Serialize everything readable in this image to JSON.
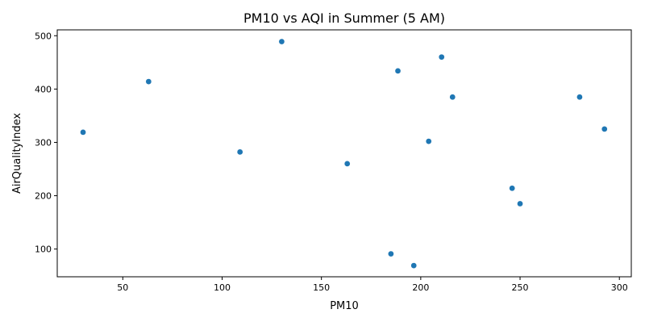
{
  "chart_data": {
    "type": "scatter",
    "title": "PM10 vs AQI in Summer (5 AM)",
    "xlabel": "PM10",
    "ylabel": "AirQualityIndex",
    "xlim": [
      17,
      306
    ],
    "ylim": [
      48,
      511
    ],
    "xticks": [
      50,
      100,
      150,
      200,
      250,
      300
    ],
    "yticks": [
      100,
      200,
      300,
      400,
      500
    ],
    "grid": false,
    "color": "#1f77b4",
    "points": [
      {
        "x": 30,
        "y": 319
      },
      {
        "x": 63,
        "y": 414
      },
      {
        "x": 109,
        "y": 282
      },
      {
        "x": 130,
        "y": 489
      },
      {
        "x": 163,
        "y": 260
      },
      {
        "x": 185,
        "y": 91
      },
      {
        "x": 188.5,
        "y": 434
      },
      {
        "x": 196.5,
        "y": 69
      },
      {
        "x": 204,
        "y": 302
      },
      {
        "x": 210.5,
        "y": 460
      },
      {
        "x": 216,
        "y": 385
      },
      {
        "x": 246,
        "y": 214
      },
      {
        "x": 250,
        "y": 185
      },
      {
        "x": 280,
        "y": 385
      },
      {
        "x": 292.5,
        "y": 325
      }
    ]
  }
}
